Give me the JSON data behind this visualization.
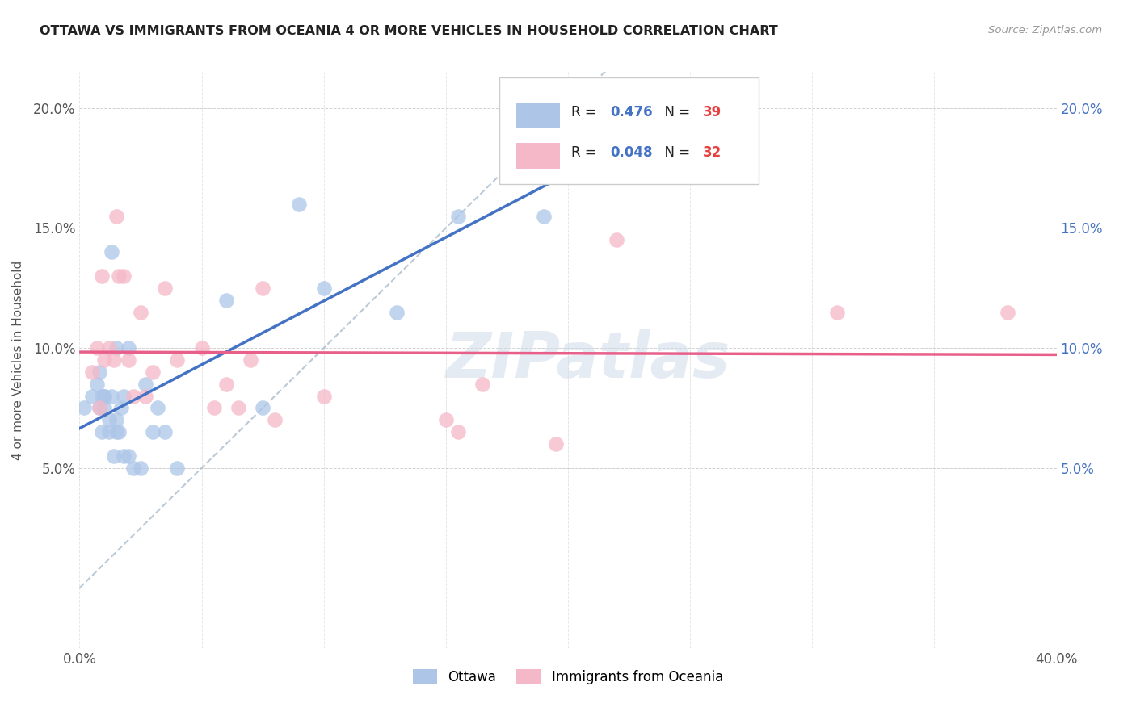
{
  "title": "OTTAWA VS IMMIGRANTS FROM OCEANIA 4 OR MORE VEHICLES IN HOUSEHOLD CORRELATION CHART",
  "source": "Source: ZipAtlas.com",
  "ylabel": "4 or more Vehicles in Household",
  "x_min": 0.0,
  "x_max": 0.4,
  "y_min": -0.025,
  "y_max": 0.215,
  "x_ticks": [
    0.0,
    0.05,
    0.1,
    0.15,
    0.2,
    0.25,
    0.3,
    0.35,
    0.4
  ],
  "y_ticks": [
    0.0,
    0.05,
    0.1,
    0.15,
    0.2
  ],
  "ottawa_R": "0.476",
  "ottawa_N": "39",
  "oceania_R": "0.048",
  "oceania_N": "32",
  "ottawa_color": "#adc6e8",
  "oceania_color": "#f5b8c8",
  "ottawa_line_color": "#4472c4",
  "oceania_line_color": "#e8608a",
  "diagonal_color": "#aabccc",
  "r_n_color": "#4472c4",
  "n_value_color": "#e84040",
  "watermark": "ZIPatlas",
  "ottawa_x": [
    0.002,
    0.005,
    0.007,
    0.008,
    0.008,
    0.009,
    0.009,
    0.01,
    0.01,
    0.01,
    0.012,
    0.012,
    0.013,
    0.013,
    0.014,
    0.015,
    0.015,
    0.015,
    0.016,
    0.017,
    0.018,
    0.018,
    0.02,
    0.02,
    0.022,
    0.025,
    0.027,
    0.03,
    0.032,
    0.035,
    0.04,
    0.06,
    0.075,
    0.09,
    0.1,
    0.13,
    0.155,
    0.19,
    0.24
  ],
  "ottawa_y": [
    0.075,
    0.08,
    0.085,
    0.09,
    0.075,
    0.08,
    0.065,
    0.075,
    0.08,
    0.08,
    0.065,
    0.07,
    0.14,
    0.08,
    0.055,
    0.065,
    0.07,
    0.1,
    0.065,
    0.075,
    0.055,
    0.08,
    0.055,
    0.1,
    0.05,
    0.05,
    0.085,
    0.065,
    0.075,
    0.065,
    0.05,
    0.12,
    0.075,
    0.16,
    0.125,
    0.115,
    0.155,
    0.155,
    0.21
  ],
  "oceania_x": [
    0.005,
    0.007,
    0.008,
    0.009,
    0.01,
    0.012,
    0.014,
    0.015,
    0.016,
    0.018,
    0.02,
    0.022,
    0.025,
    0.027,
    0.03,
    0.035,
    0.04,
    0.05,
    0.055,
    0.06,
    0.065,
    0.07,
    0.075,
    0.08,
    0.1,
    0.15,
    0.155,
    0.165,
    0.195,
    0.22,
    0.31,
    0.38
  ],
  "oceania_y": [
    0.09,
    0.1,
    0.075,
    0.13,
    0.095,
    0.1,
    0.095,
    0.155,
    0.13,
    0.13,
    0.095,
    0.08,
    0.115,
    0.08,
    0.09,
    0.125,
    0.095,
    0.1,
    0.075,
    0.085,
    0.075,
    0.095,
    0.125,
    0.07,
    0.08,
    0.07,
    0.065,
    0.085,
    0.06,
    0.145,
    0.115,
    0.115
  ]
}
